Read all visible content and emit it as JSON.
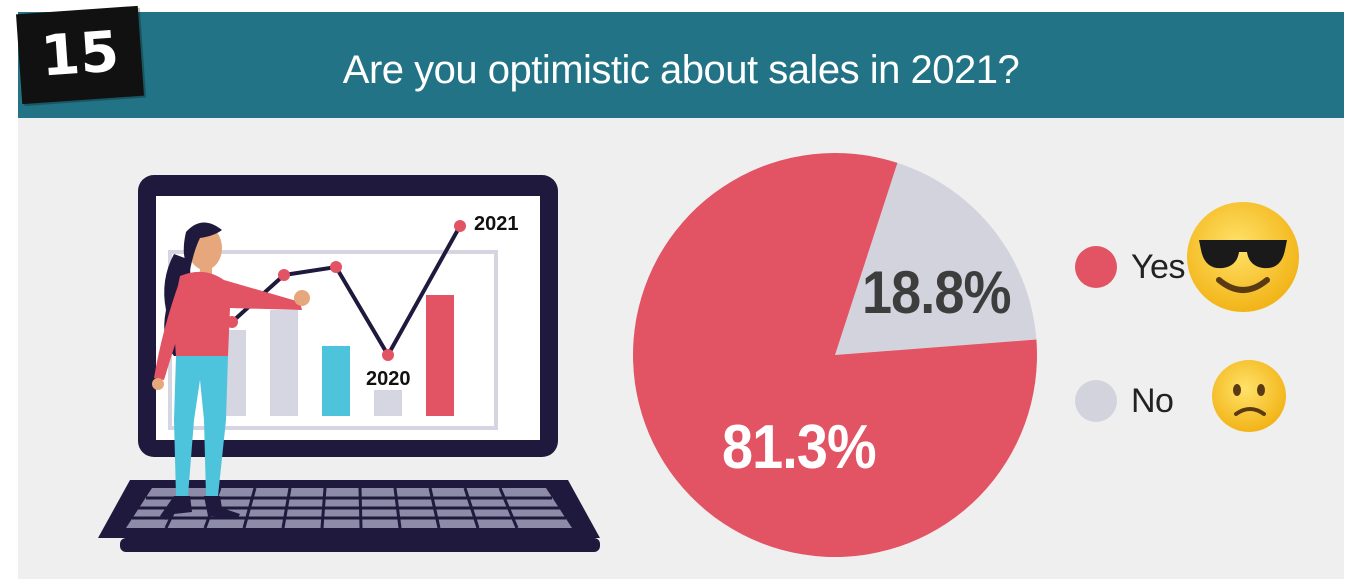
{
  "header": {
    "number": "15",
    "title": "Are you optimistic about sales in 2021?",
    "background_color": "#227385"
  },
  "illustration": {
    "label_2021": "2021",
    "label_2020": "2020"
  },
  "chart_data": {
    "type": "pie",
    "title": "Are you optimistic about sales in 2021?",
    "slices": [
      {
        "label": "Yes",
        "value": 81.3,
        "display": "81.3%",
        "color": "#e25363",
        "icon": "smiling-face-with-sunglasses-icon"
      },
      {
        "label": "No",
        "value": 18.8,
        "display": "18.8%",
        "color": "#d3d3dd",
        "icon": "slightly-frowning-face-icon"
      }
    ],
    "legend_position": "right"
  }
}
